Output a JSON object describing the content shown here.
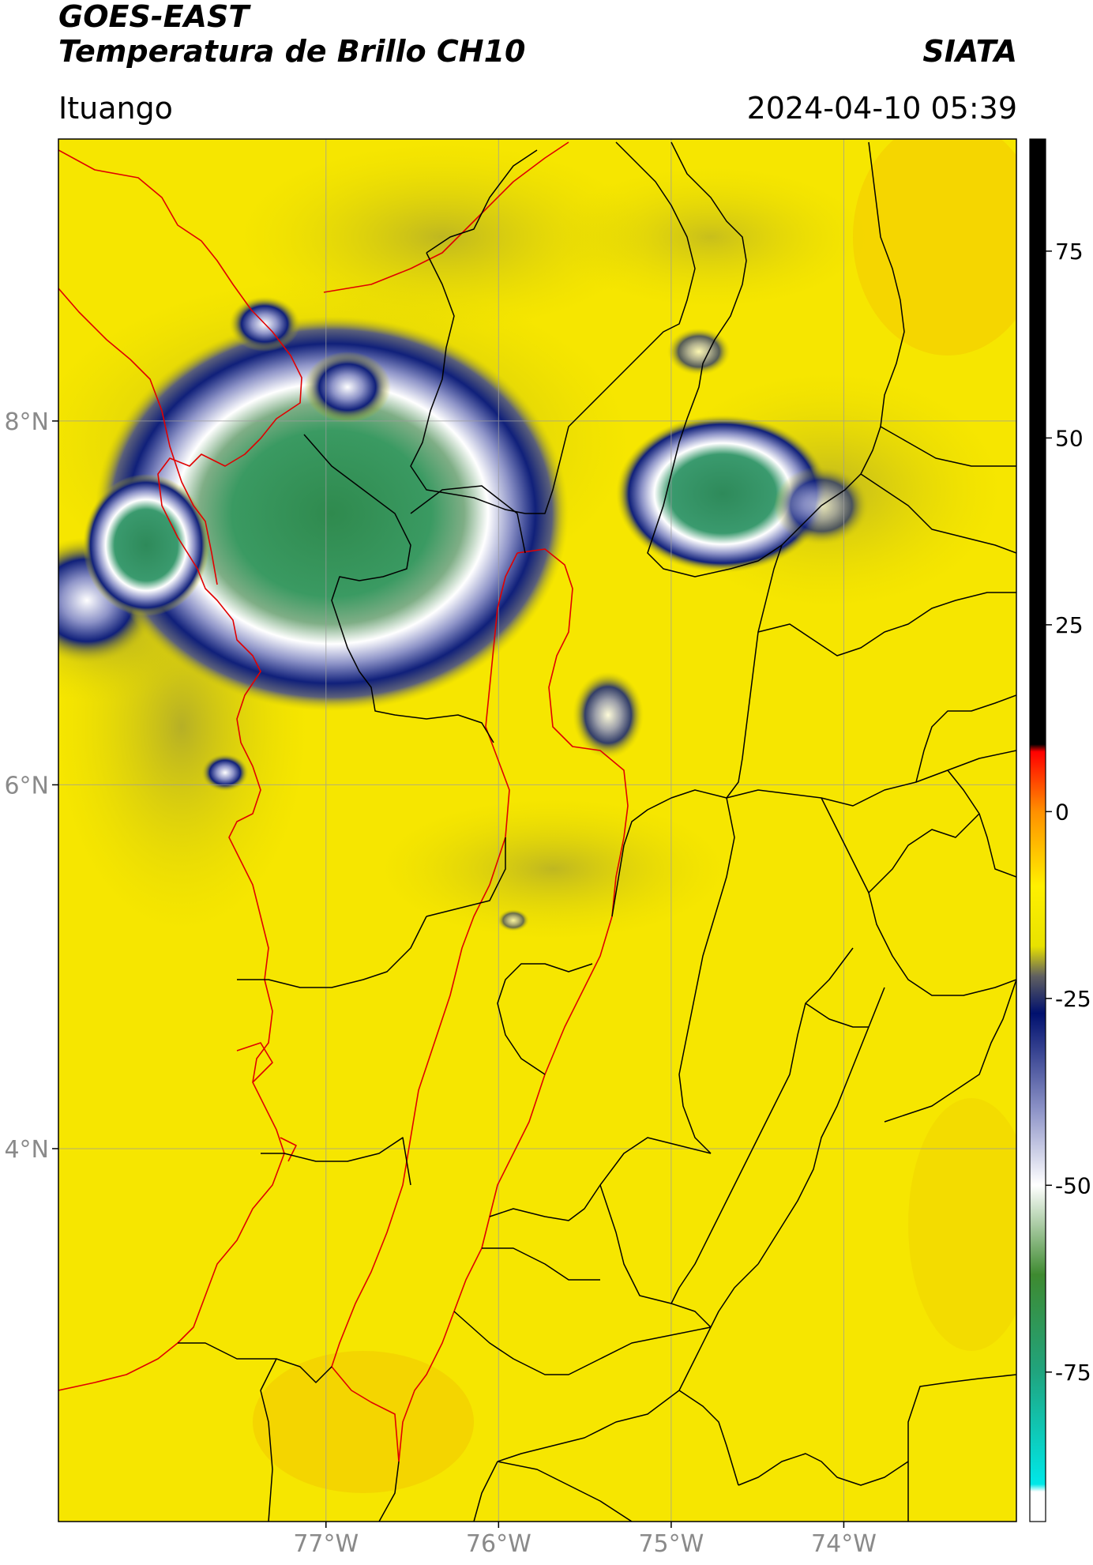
{
  "header": {
    "title_line1": "GOES-EAST",
    "title_line2": "Temperatura de Brillo CH10",
    "organization": "SIATA",
    "region": "Ituango",
    "timestamp": "2024-04-10 05:39"
  },
  "map": {
    "lon_range": [
      -78.55,
      -73.0
    ],
    "lat_range": [
      1.95,
      9.55
    ],
    "lon_ticks": [
      -77,
      -76,
      -75,
      -74
    ],
    "lon_tick_labels": [
      "77°W",
      "76°W",
      "75°W",
      "74°W"
    ],
    "lat_ticks": [
      8,
      6,
      4
    ],
    "lat_tick_labels": [
      "8°N",
      "6°N",
      "4°N"
    ],
    "grid": true,
    "background_color": "#f6e600",
    "border_colors": {
      "department": "#000000",
      "highlight": "#e00000"
    }
  },
  "colorbar": {
    "ticks": [
      75,
      50,
      25,
      0,
      -25,
      -50,
      -75
    ],
    "tick_labels": [
      "75",
      "50",
      "25",
      "0",
      "-25",
      "-50",
      "-75"
    ],
    "range": [
      -95,
      90
    ],
    "stops": [
      {
        "value": 90,
        "color": "#000000"
      },
      {
        "value": 9,
        "color": "#000000"
      },
      {
        "value": 8,
        "color": "#ff0000"
      },
      {
        "value": 0,
        "color": "#ff9000"
      },
      {
        "value": -10,
        "color": "#fff000"
      },
      {
        "value": -18,
        "color": "#e8e200"
      },
      {
        "value": -22,
        "color": "#606060"
      },
      {
        "value": -27,
        "color": "#00106e"
      },
      {
        "value": -40,
        "color": "#8e94c8"
      },
      {
        "value": -50,
        "color": "#ffffff"
      },
      {
        "value": -62,
        "color": "#3e8a30"
      },
      {
        "value": -75,
        "color": "#20a47e"
      },
      {
        "value": -90,
        "color": "#00e8e8"
      },
      {
        "value": -91,
        "color": "#ffffff"
      },
      {
        "value": -95,
        "color": "#ffffff"
      }
    ]
  }
}
